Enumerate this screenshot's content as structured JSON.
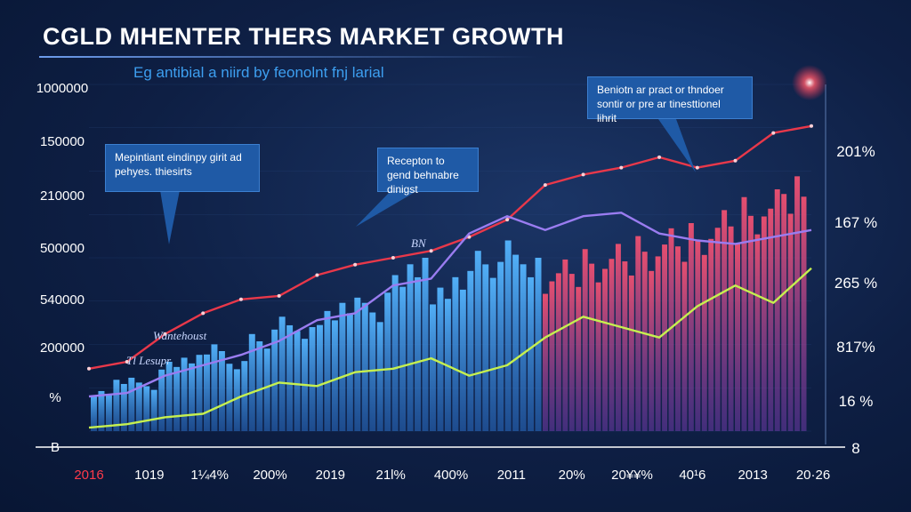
{
  "header": {
    "title": "CGLD MHENTER THERS MARKET GROWTH",
    "subtitle": "Eg antibial a niird by feonolnt fnj larial"
  },
  "callouts": [
    {
      "text": "Mepintiant eindinpy girit ad pehyes. thiesirts"
    },
    {
      "text": "Recepton to gend behnabre dinigst"
    },
    {
      "text": "Beniotn ar pract or thndoer sontir or pre ar tinesttionel lihrit"
    }
  ],
  "annotations": [
    "Wantehoust",
    "Tl Lesupr",
    "BN"
  ],
  "colors": {
    "line_red": "#e8384a",
    "line_purple": "#9a7cf0",
    "line_green": "#c6f04f",
    "bars_blue": "#3c9ae8",
    "bars_pink": "#d8406a",
    "callout_bg": "#1f5aa6"
  },
  "chart_data": {
    "type": "line",
    "title": "CGLD MHENTER THERS MARKET GROWTH",
    "x_tick_labels": [
      "2016",
      "1019",
      "1¼4%",
      "200%",
      "2019",
      "21l%",
      "400%",
      "2011",
      "20%",
      "20¥¥%",
      "40¹6",
      "2013",
      "20·26"
    ],
    "left_tick_labels": [
      "1000000",
      "150000",
      "210000",
      "500000",
      "540000",
      "200000",
      "%",
      "B"
    ],
    "right_tick_labels": [
      "201%",
      "167 %",
      "265 %",
      "817%",
      "16 %",
      "8"
    ],
    "series": [
      {
        "values": [
          0.18,
          0.2,
          0.28,
          0.34,
          0.38,
          0.39,
          0.45,
          0.48,
          0.5,
          0.52,
          0.56,
          0.61,
          0.71,
          0.74,
          0.76,
          0.79,
          0.76,
          0.78,
          0.86,
          0.88
        ]
      },
      {
        "values": [
          0.1,
          0.11,
          0.16,
          0.19,
          0.22,
          0.26,
          0.32,
          0.34,
          0.42,
          0.44,
          0.57,
          0.62,
          0.58,
          0.62,
          0.63,
          0.57,
          0.55,
          0.54,
          0.56,
          0.58
        ]
      },
      {
        "values": [
          0.01,
          0.02,
          0.04,
          0.05,
          0.1,
          0.14,
          0.13,
          0.17,
          0.18,
          0.21,
          0.16,
          0.19,
          0.27,
          0.33,
          0.3,
          0.27,
          0.36,
          0.42,
          0.37,
          0.47
        ]
      }
    ],
    "bars": {
      "blue_values": [
        0.12,
        0.16,
        0.14,
        0.2,
        0.22,
        0.26,
        0.21,
        0.28,
        0.33,
        0.3,
        0.36,
        0.4,
        0.37,
        0.45,
        0.5,
        0.43,
        0.48,
        0.52,
        0.55,
        0.5
      ],
      "pink_values": [
        0.6,
        0.66,
        0.63,
        0.7,
        0.65,
        0.72,
        0.68,
        0.75,
        0.7,
        0.78,
        0.74,
        0.8,
        0.77,
        0.85,
        0.82,
        0.9,
        0.86,
        0.93,
        0.95,
        0.98
      ]
    },
    "ylim": [
      0,
      1
    ],
    "grid": true
  }
}
